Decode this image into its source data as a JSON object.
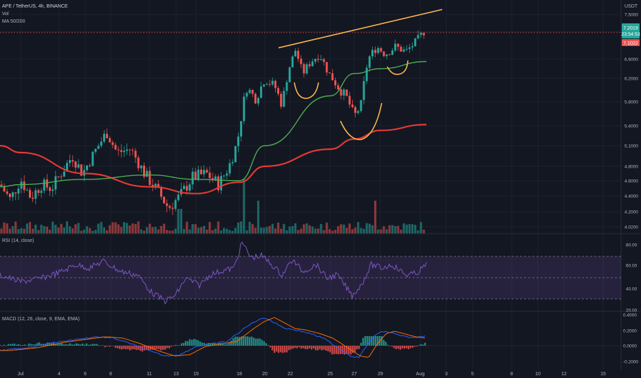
{
  "header": {
    "symbol": "APE / TetherUS, 4h, BINANCE",
    "volume_label": "Vol",
    "ma_label": "MA 50/200"
  },
  "price_axis": {
    "currency": "USDT",
    "ticks": [
      "7.5000",
      "6.6000",
      "6.2000",
      "5.8000",
      "5.4000",
      "5.1000",
      "4.8000",
      "4.6000",
      "4.4000",
      "4.2000",
      "4.0200"
    ],
    "last_price_badge": "7.2019",
    "countdown_badge": "23:54:53",
    "ma_price_badge": "7.1022"
  },
  "rsi_pane": {
    "label": "RSI (14, close)",
    "ticks": [
      "80.00",
      "60.00",
      "40.00",
      "20.00"
    ]
  },
  "macd_pane": {
    "label": "MACD (12, 26, close, 9, EMA, EMA)",
    "ticks": [
      "0.4000",
      "0.2000",
      "0.0000",
      "-0.2000"
    ]
  },
  "time_axis": {
    "labels": [
      "Jul",
      "4",
      "6",
      "8",
      "11",
      "13",
      "15",
      "18",
      "20",
      "22",
      "25",
      "27",
      "29",
      "Aug",
      "3",
      "5",
      "8",
      "10",
      "12",
      "15"
    ]
  },
  "colors": {
    "background": "#131722",
    "up": "#26a69a",
    "down": "#ef5350",
    "ma50": "#4caf50",
    "ma200": "#e53935",
    "annotation": "#ffb74d",
    "rsi": "#7e57c2",
    "macd": "#2962ff",
    "signal": "#ff6d00"
  },
  "chart_data": {
    "type": "candlestick",
    "symbol": "APE/USDT",
    "timeframe": "4h",
    "price_range": [
      3.95,
      7.6
    ],
    "series": [
      {
        "name": "MA 50",
        "x": [
          "Jul 1",
          "Jul 6",
          "Jul 11",
          "Jul 15",
          "Jul 18",
          "Jul 20",
          "Jul 25",
          "Jul 27",
          "Jul 29",
          "Aug 1"
        ],
        "values": [
          4.55,
          4.62,
          4.68,
          4.62,
          4.6,
          5.1,
          5.9,
          6.3,
          6.4,
          6.55
        ]
      },
      {
        "name": "MA 200",
        "x": [
          "Jul 1",
          "Jul 6",
          "Jul 11",
          "Jul 15",
          "Jul 18",
          "Jul 20",
          "Jul 25",
          "Jul 27",
          "Jul 29",
          "Aug 1"
        ],
        "values": [
          5.0,
          4.7,
          4.52,
          4.43,
          4.58,
          4.8,
          5.05,
          5.2,
          5.33,
          5.42
        ]
      }
    ],
    "resistance_line": {
      "from": [
        "Jul 22",
        6.8
      ],
      "to": [
        "Aug 1",
        7.22
      ]
    },
    "rsi": {
      "bands": [
        30,
        50,
        70
      ],
      "range": [
        20,
        85
      ]
    },
    "macd": {
      "range": [
        -0.25,
        0.45
      ]
    }
  }
}
